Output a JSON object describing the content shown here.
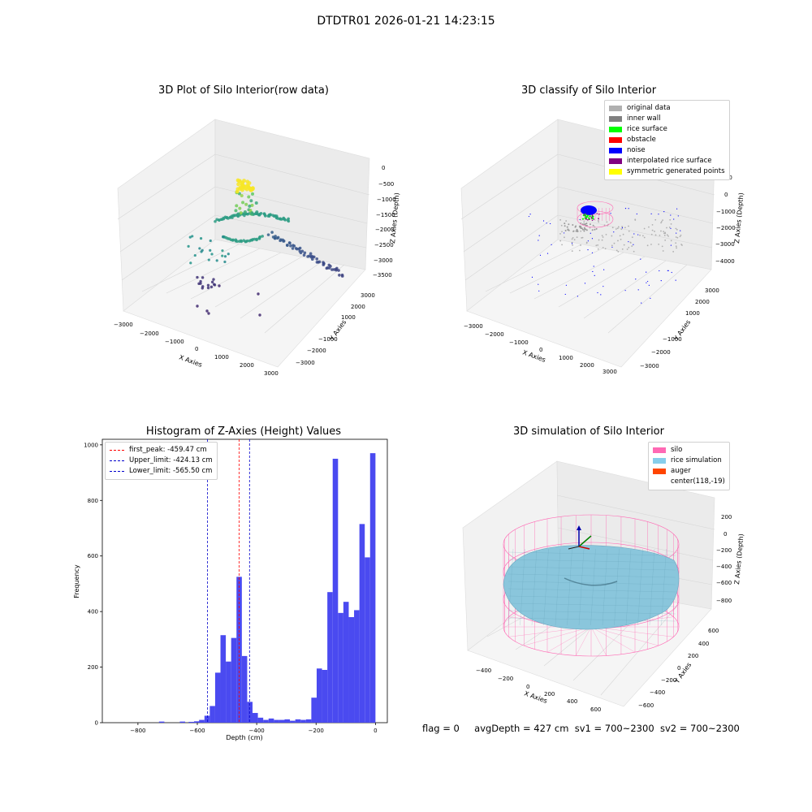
{
  "suptitle": "DTDTR01 2026-01-21 14:23:15",
  "panels": {
    "raw": {
      "title": "3D Plot of Silo Interior(row data)",
      "x_label": "X Axies",
      "y_label": "Y Axies",
      "z_label": "Z Axies (Depth)",
      "x_ticks": [
        "−3000",
        "−2000",
        "−1000",
        "0",
        "1000",
        "2000",
        "3000"
      ],
      "y_ticks": [
        "3000",
        "2000",
        "1000",
        "−1000",
        "−2000",
        "−3000"
      ],
      "z_ticks": [
        "0",
        "−500",
        "−1000",
        "−1500",
        "−2000",
        "−2500",
        "−3000",
        "−3500"
      ]
    },
    "classify": {
      "title": "3D classify of Silo Interior",
      "x_label": "X Axies",
      "y_label": "Y Axies",
      "z_label": "Z Axies (Depth)",
      "x_ticks": [
        "−3000",
        "−2000",
        "−1000",
        "0",
        "1000",
        "2000",
        "3000"
      ],
      "y_ticks": [
        "3000",
        "2000",
        "1000",
        "−1000",
        "−2000",
        "−3000"
      ],
      "z_ticks": [
        "1000",
        "0",
        "−1000",
        "−2000",
        "−3000",
        "−4000"
      ],
      "legend": [
        {
          "label": "original data",
          "color": "#b0b0b0"
        },
        {
          "label": "inner wall",
          "color": "#808080"
        },
        {
          "label": "rice surface",
          "color": "#00ff00"
        },
        {
          "label": "obstacle",
          "color": "#ff0000"
        },
        {
          "label": "noise",
          "color": "#0000ff"
        },
        {
          "label": "interpolated rice surface",
          "color": "#800080"
        },
        {
          "label": "symmetric generated points",
          "color": "#ffff00"
        }
      ]
    },
    "simulation": {
      "title": "3D simulation of Silo Interior",
      "x_label": "X Axies",
      "y_label": "Y Axies",
      "z_label": "Z Axies (Depth)",
      "x_ticks": [
        "−400",
        "−200",
        "0",
        "200",
        "400",
        "600"
      ],
      "y_ticks": [
        "600",
        "400",
        "200",
        "0",
        "−200",
        "−400",
        "−600"
      ],
      "z_ticks": [
        "200",
        "0",
        "−200",
        "−400",
        "−600",
        "−800"
      ],
      "legend": [
        {
          "label": "silo",
          "color": "#ff69b4"
        },
        {
          "label": "rice simulation",
          "color": "#87ceeb"
        },
        {
          "label": "auger",
          "color": "#ff4500"
        },
        {
          "label": "center(118,-19)",
          "color": ""
        }
      ]
    }
  },
  "status": {
    "flag": "flag = 0",
    "avg_depth": "avgDepth = 427 cm",
    "sv1": "sv1 = 700~2300",
    "sv2": "sv2 = 700~2300"
  },
  "chart_data": [
    {
      "type": "bar",
      "title": "Histogram of Z-Axies (Height) Values",
      "xlabel": "Depth (cm)",
      "ylabel": "Frequency",
      "xlim": [
        -920,
        40
      ],
      "ylim": [
        0,
        1020
      ],
      "x_ticks": [
        -800,
        -600,
        -400,
        -200,
        0
      ],
      "y_ticks": [
        0,
        200,
        400,
        600,
        800,
        1000
      ],
      "bin_width": 18,
      "bins": [
        {
          "x": -720,
          "v": 4
        },
        {
          "x": -650,
          "v": 4
        },
        {
          "x": -620,
          "v": 3
        },
        {
          "x": -602,
          "v": 5
        },
        {
          "x": -585,
          "v": 10
        },
        {
          "x": -567,
          "v": 25
        },
        {
          "x": -549,
          "v": 60
        },
        {
          "x": -531,
          "v": 180
        },
        {
          "x": -513,
          "v": 315
        },
        {
          "x": -495,
          "v": 220
        },
        {
          "x": -477,
          "v": 305
        },
        {
          "x": -459,
          "v": 525
        },
        {
          "x": -441,
          "v": 240
        },
        {
          "x": -423,
          "v": 75
        },
        {
          "x": -405,
          "v": 35
        },
        {
          "x": -387,
          "v": 18
        },
        {
          "x": -369,
          "v": 10
        },
        {
          "x": -351,
          "v": 15
        },
        {
          "x": -333,
          "v": 10
        },
        {
          "x": -315,
          "v": 10
        },
        {
          "x": -297,
          "v": 12
        },
        {
          "x": -279,
          "v": 7
        },
        {
          "x": -261,
          "v": 12
        },
        {
          "x": -243,
          "v": 10
        },
        {
          "x": -225,
          "v": 12
        },
        {
          "x": -207,
          "v": 90
        },
        {
          "x": -189,
          "v": 195
        },
        {
          "x": -171,
          "v": 190
        },
        {
          "x": -153,
          "v": 470
        },
        {
          "x": -135,
          "v": 950
        },
        {
          "x": -117,
          "v": 395
        },
        {
          "x": -99,
          "v": 435
        },
        {
          "x": -81,
          "v": 380
        },
        {
          "x": -63,
          "v": 405
        },
        {
          "x": -45,
          "v": 715
        },
        {
          "x": -27,
          "v": 595
        },
        {
          "x": -9,
          "v": 970
        }
      ],
      "bar_color": "#4a4af0",
      "vlines": [
        {
          "label": "first_peak: -459.47 cm",
          "x": -459.47,
          "color": "#ff0000"
        },
        {
          "label": "Upper_limit: -424.13 cm",
          "x": -424.13,
          "color": "#0000cc"
        },
        {
          "label": "Lower_limit: -565.50 cm",
          "x": -565.5,
          "color": "#0000cc"
        }
      ]
    }
  ]
}
